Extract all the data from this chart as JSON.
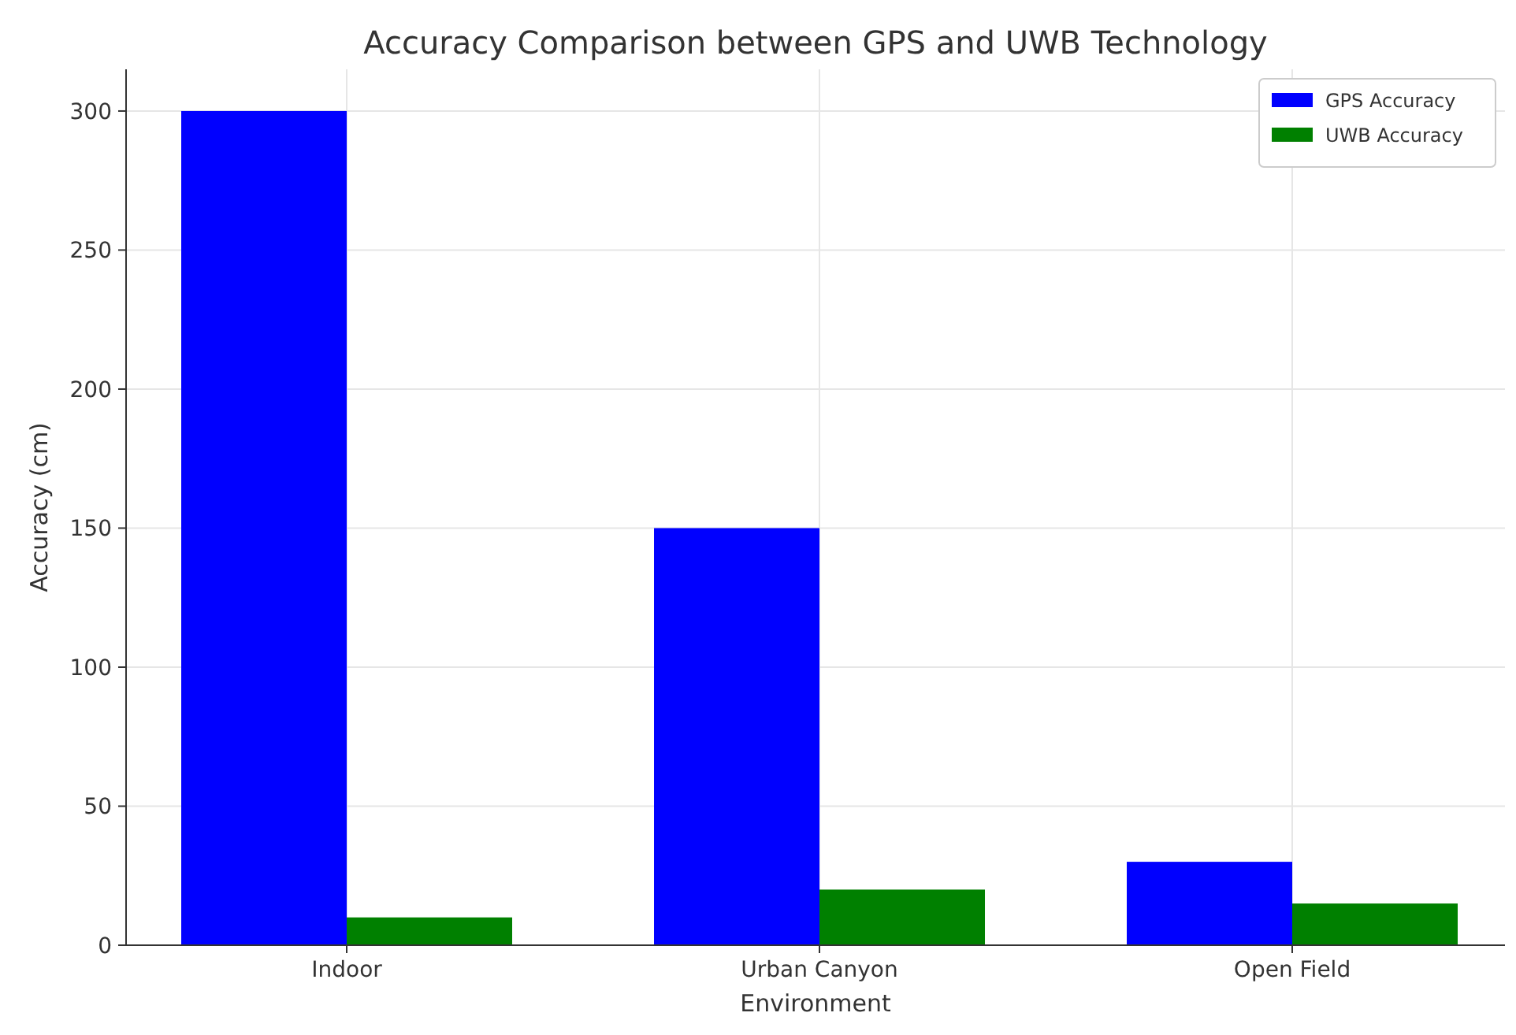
{
  "chart_data": {
    "type": "bar",
    "title": "Accuracy Comparison between GPS and UWB Technology",
    "xlabel": "Environment",
    "ylabel": "Accuracy (cm)",
    "categories": [
      "Indoor",
      "Urban Canyon",
      "Open Field"
    ],
    "series": [
      {
        "name": "GPS Accuracy",
        "color": "#0000ff",
        "values": [
          300,
          150,
          30
        ]
      },
      {
        "name": "UWB Accuracy",
        "color": "#008000",
        "values": [
          10,
          20,
          15
        ]
      }
    ],
    "ylim": [
      0,
      315
    ],
    "yticks": [
      0,
      50,
      100,
      150,
      200,
      250,
      300
    ],
    "grid": true,
    "legend": "top right"
  }
}
